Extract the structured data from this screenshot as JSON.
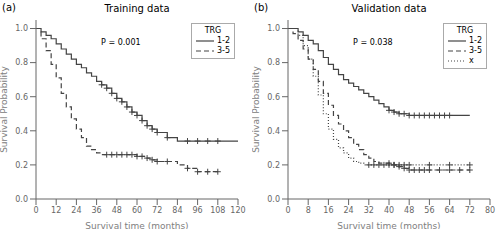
{
  "chart_data": [
    {
      "type": "step",
      "title": "Training data",
      "panel_label": "(a)",
      "annotations": [
        "P = 0.001"
      ],
      "x_label": "Survival time (months)",
      "y_label": "Survival Probability",
      "xlim": [
        0,
        120
      ],
      "ylim": [
        0.0,
        1.05
      ],
      "xticks": [
        0,
        12,
        24,
        36,
        48,
        60,
        72,
        84,
        96,
        108,
        120
      ],
      "yticks": [
        {
          "value": 0.0,
          "label": "0.0"
        },
        {
          "value": 0.2,
          "label": "0.2"
        },
        {
          "value": 0.4,
          "label": "0.4"
        },
        {
          "value": 0.6,
          "label": "0.6"
        },
        {
          "value": 0.8,
          "label": "0.8"
        },
        {
          "value": 1.0,
          "label": "1.0"
        }
      ],
      "legend": "upper right",
      "legend_title": "TRG",
      "series": [
        {
          "name": "1-2",
          "color": "#444444",
          "line_style": "solid",
          "marker": "+",
          "x": [
            0,
            3,
            6,
            9,
            12,
            15,
            18,
            21,
            24,
            27,
            30,
            33,
            36,
            39,
            42,
            45,
            48,
            51,
            54,
            57,
            60,
            63,
            66,
            69,
            72,
            78,
            84,
            90,
            96,
            102,
            108,
            120
          ],
          "values": [
            1.0,
            0.98,
            0.96,
            0.94,
            0.91,
            0.88,
            0.85,
            0.82,
            0.79,
            0.77,
            0.74,
            0.72,
            0.69,
            0.67,
            0.65,
            0.62,
            0.59,
            0.57,
            0.54,
            0.51,
            0.49,
            0.46,
            0.43,
            0.41,
            0.39,
            0.36,
            0.34,
            0.34,
            0.34,
            0.34,
            0.34,
            0.34
          ],
          "censor_x": [
            39,
            42,
            45,
            48,
            51,
            54,
            57,
            60,
            63,
            66,
            69,
            72,
            78,
            90,
            96,
            102,
            108
          ],
          "censor_y": [
            0.67,
            0.65,
            0.62,
            0.59,
            0.57,
            0.54,
            0.51,
            0.49,
            0.46,
            0.43,
            0.41,
            0.39,
            0.36,
            0.34,
            0.34,
            0.34,
            0.34
          ]
        },
        {
          "name": "3-5",
          "color": "#444444",
          "line_style": "dashed",
          "marker": "+",
          "x": [
            0,
            3,
            6,
            9,
            12,
            15,
            18,
            21,
            24,
            27,
            30,
            33,
            36,
            39,
            42,
            45,
            48,
            51,
            54,
            57,
            60,
            63,
            66,
            69,
            72,
            78,
            84,
            90,
            96,
            102,
            108
          ],
          "values": [
            1.0,
            0.94,
            0.87,
            0.79,
            0.71,
            0.62,
            0.54,
            0.47,
            0.41,
            0.36,
            0.31,
            0.29,
            0.27,
            0.26,
            0.26,
            0.26,
            0.26,
            0.26,
            0.26,
            0.26,
            0.25,
            0.25,
            0.24,
            0.23,
            0.22,
            0.22,
            0.2,
            0.18,
            0.16,
            0.16,
            0.16
          ],
          "censor_x": [
            42,
            45,
            48,
            51,
            54,
            57,
            60,
            63,
            66,
            69,
            72,
            78,
            90,
            96,
            102,
            108
          ],
          "censor_y": [
            0.26,
            0.26,
            0.26,
            0.26,
            0.26,
            0.26,
            0.25,
            0.25,
            0.24,
            0.23,
            0.22,
            0.22,
            0.18,
            0.16,
            0.16,
            0.16
          ]
        }
      ]
    },
    {
      "type": "step",
      "title": "Validation data",
      "panel_label": "(b)",
      "annotations": [
        "P = 0.038"
      ],
      "x_label": "Survival time (months)",
      "y_label": "Survival Probability",
      "xlim": [
        0,
        80
      ],
      "ylim": [
        0.0,
        1.05
      ],
      "xticks": [
        0,
        8,
        16,
        24,
        32,
        40,
        48,
        56,
        64,
        72,
        80
      ],
      "yticks": [
        {
          "value": 0.0,
          "label": "0.0"
        },
        {
          "value": 0.2,
          "label": "0.2"
        },
        {
          "value": 0.4,
          "label": "0.4"
        },
        {
          "value": 0.6,
          "label": "0.6"
        },
        {
          "value": 0.8,
          "label": "0.8"
        },
        {
          "value": 1.0,
          "label": "1.0"
        }
      ],
      "legend": "upper right",
      "legend_title": "TRG",
      "series": [
        {
          "name": "1-2",
          "color": "#444444",
          "line_style": "solid",
          "marker": "+",
          "x": [
            0,
            2,
            4,
            6,
            8,
            10,
            12,
            14,
            16,
            18,
            20,
            22,
            24,
            26,
            28,
            30,
            32,
            34,
            36,
            38,
            40,
            42,
            44,
            46,
            48,
            50,
            52,
            54,
            56,
            58,
            60,
            62,
            64,
            72
          ],
          "values": [
            1.0,
            1.0,
            0.98,
            0.96,
            0.93,
            0.91,
            0.87,
            0.83,
            0.79,
            0.76,
            0.73,
            0.7,
            0.68,
            0.66,
            0.64,
            0.62,
            0.6,
            0.58,
            0.56,
            0.54,
            0.52,
            0.51,
            0.5,
            0.5,
            0.49,
            0.49,
            0.49,
            0.49,
            0.49,
            0.49,
            0.49,
            0.49,
            0.49,
            0.49
          ],
          "censor_x": [
            40,
            42,
            44,
            46,
            48,
            50,
            52,
            54,
            56,
            58,
            60,
            62,
            64
          ],
          "censor_y": [
            0.52,
            0.51,
            0.5,
            0.5,
            0.49,
            0.49,
            0.49,
            0.49,
            0.49,
            0.49,
            0.49,
            0.49,
            0.49
          ]
        },
        {
          "name": "3-5",
          "color": "#444444",
          "line_style": "dashed",
          "marker": "+",
          "x": [
            0,
            2,
            4,
            6,
            8,
            10,
            12,
            14,
            16,
            18,
            20,
            22,
            24,
            26,
            28,
            30,
            32,
            34,
            36,
            38,
            40,
            42,
            44,
            46,
            48,
            50,
            52,
            54,
            56,
            60,
            64,
            68,
            72
          ],
          "values": [
            1.0,
            0.97,
            0.93,
            0.88,
            0.82,
            0.76,
            0.69,
            0.62,
            0.55,
            0.49,
            0.44,
            0.4,
            0.36,
            0.32,
            0.29,
            0.26,
            0.24,
            0.22,
            0.21,
            0.21,
            0.21,
            0.2,
            0.19,
            0.18,
            0.17,
            0.17,
            0.17,
            0.17,
            0.17,
            0.17,
            0.17,
            0.17,
            0.17
          ],
          "censor_x": [
            40,
            42,
            44,
            46,
            48,
            50,
            52,
            54,
            56,
            60,
            64,
            68,
            72
          ],
          "censor_y": [
            0.21,
            0.2,
            0.19,
            0.18,
            0.17,
            0.17,
            0.17,
            0.17,
            0.17,
            0.17,
            0.17,
            0.17,
            0.17
          ]
        },
        {
          "name": "x",
          "color": "#444444",
          "line_style": "dotted",
          "marker": "+",
          "x": [
            0,
            2,
            4,
            6,
            8,
            10,
            12,
            14,
            16,
            18,
            20,
            22,
            24,
            26,
            28,
            30,
            32,
            34,
            36,
            38,
            40,
            42,
            44,
            46,
            48,
            56,
            64,
            72
          ],
          "values": [
            1.0,
            1.0,
            0.96,
            0.9,
            0.82,
            0.72,
            0.61,
            0.5,
            0.41,
            0.35,
            0.3,
            0.27,
            0.24,
            0.22,
            0.21,
            0.2,
            0.2,
            0.2,
            0.2,
            0.2,
            0.2,
            0.2,
            0.2,
            0.2,
            0.2,
            0.2,
            0.2,
            0.2
          ],
          "censor_x": [
            32,
            34,
            36,
            38,
            40,
            42,
            44,
            46,
            48,
            56,
            64,
            72
          ],
          "censor_y": [
            0.2,
            0.2,
            0.2,
            0.2,
            0.2,
            0.2,
            0.2,
            0.2,
            0.2,
            0.2,
            0.2,
            0.2
          ]
        }
      ]
    }
  ]
}
